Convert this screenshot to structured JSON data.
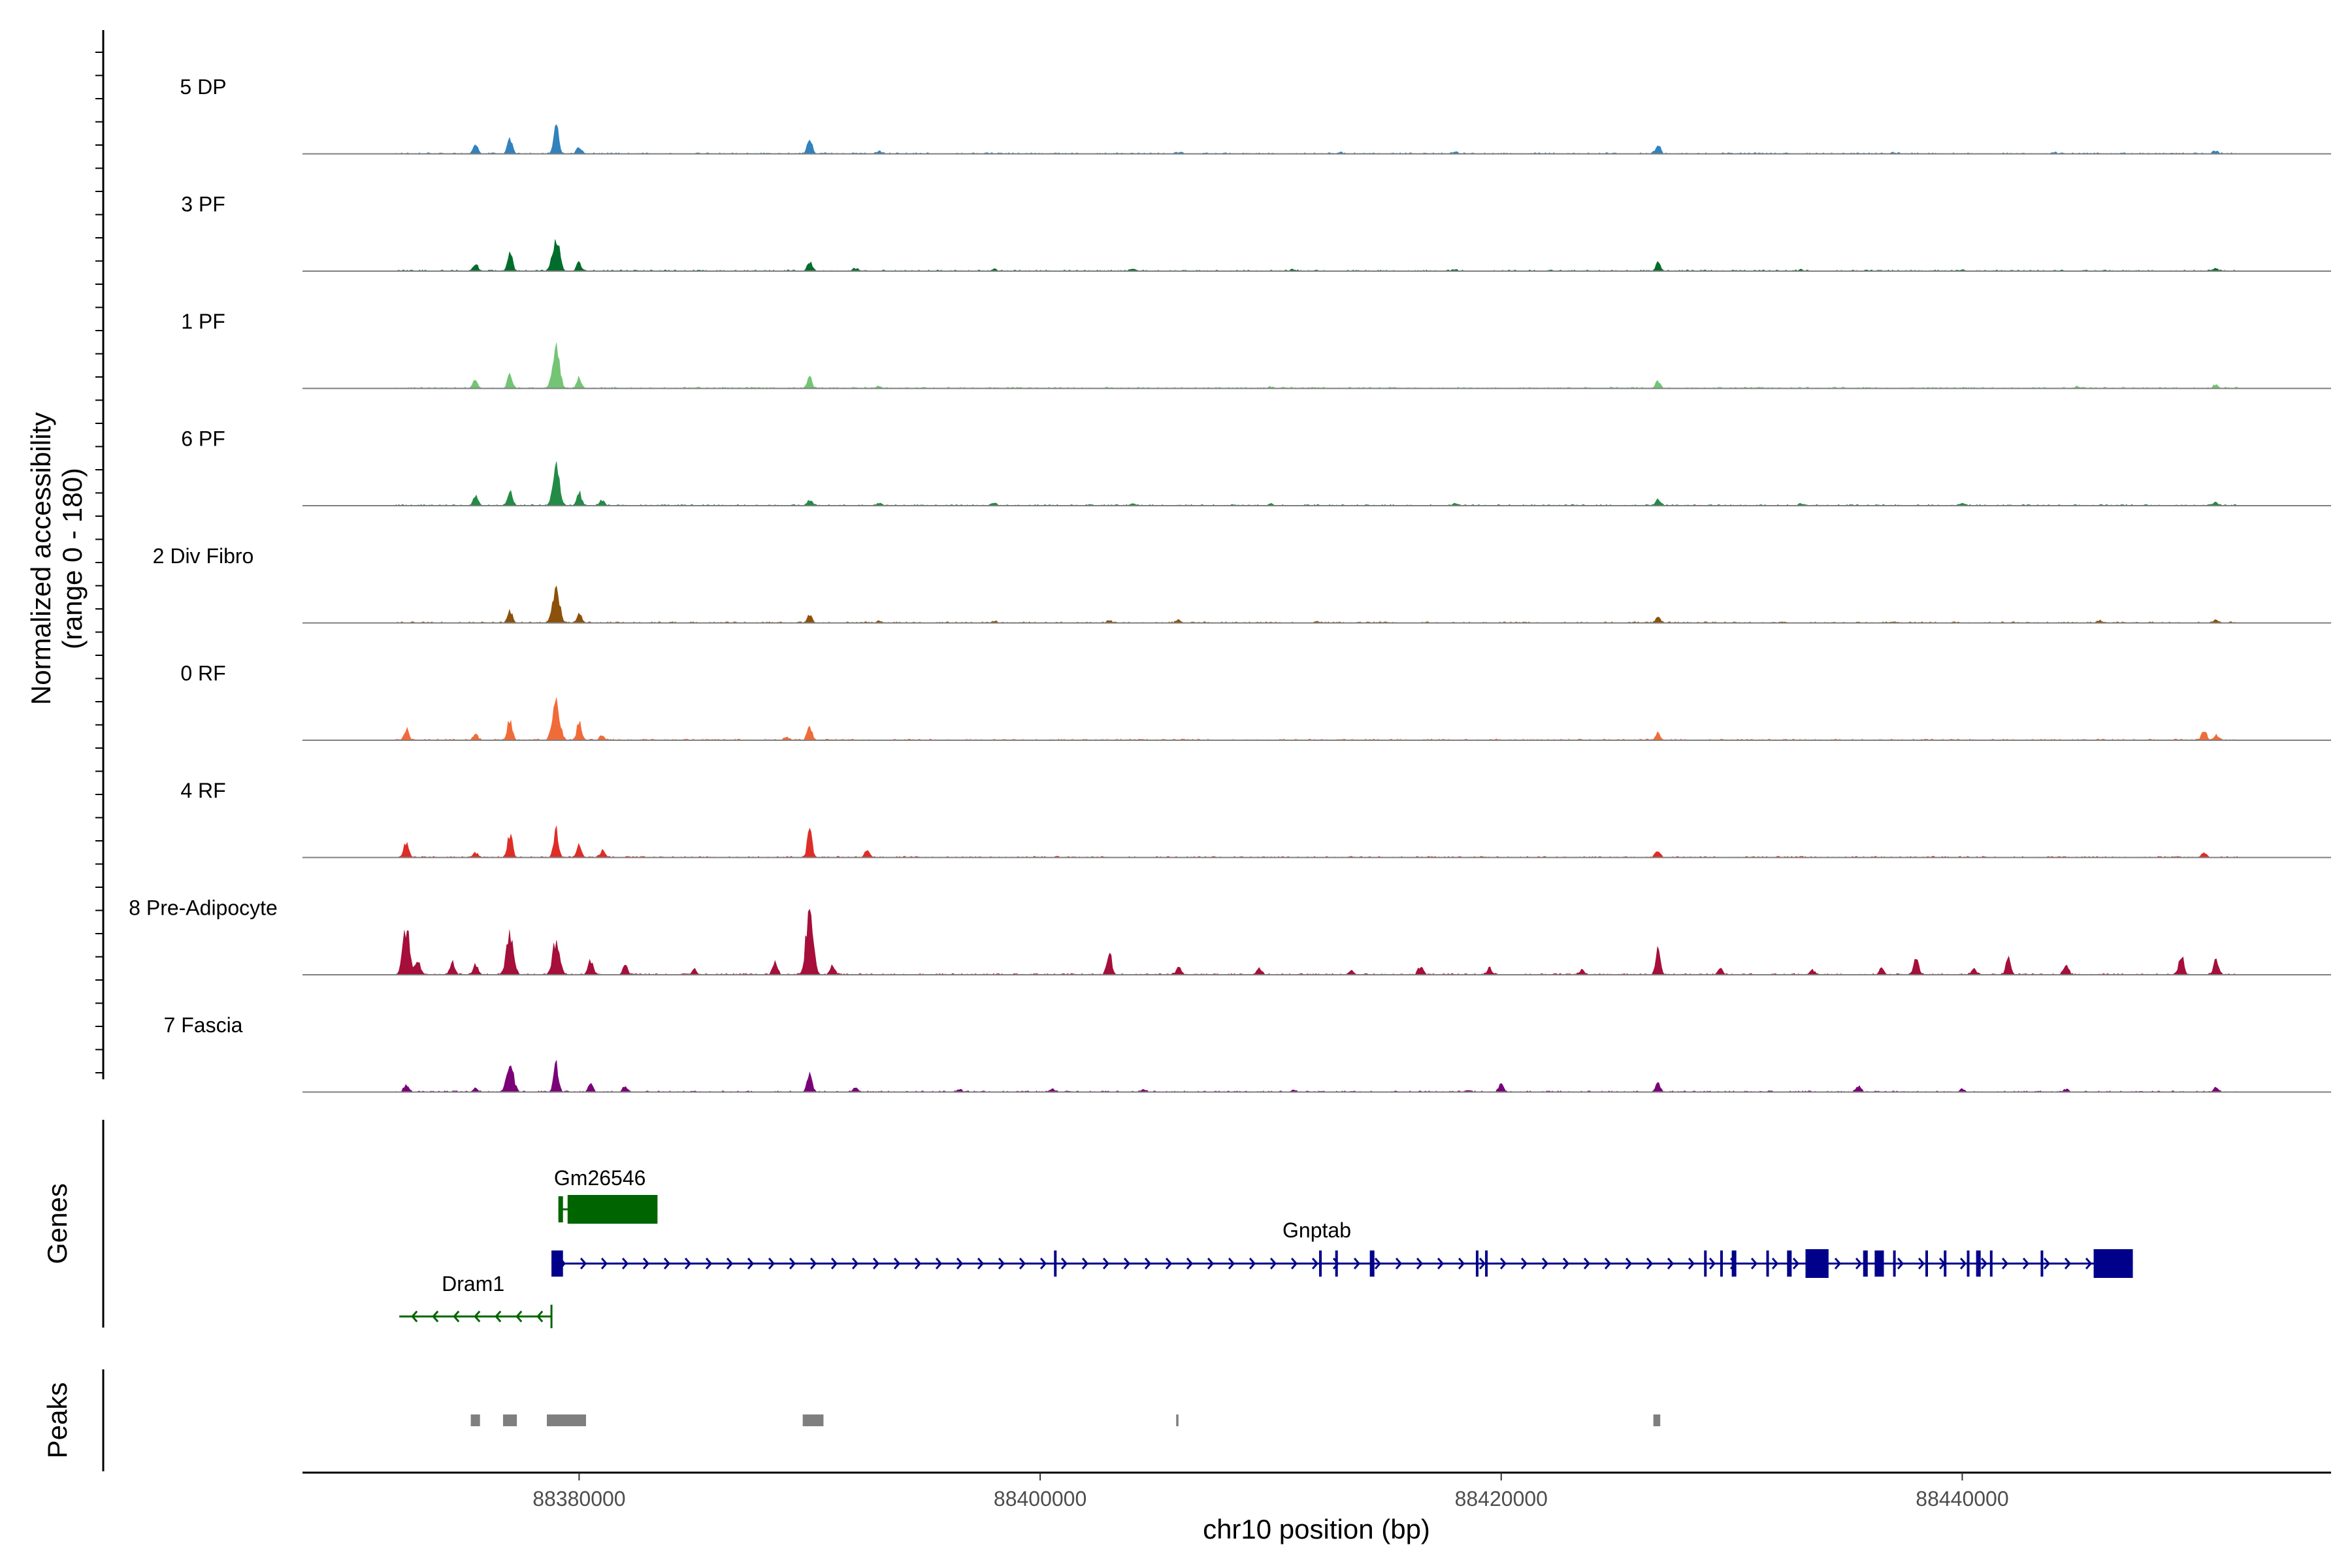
{
  "chart_data": {
    "type": "area",
    "title": "",
    "xlabel": "chr10 position (bp)",
    "ylabel_line1": "Normalized accessibility",
    "ylabel_line2": "(range 0 - 180)",
    "ylim": [
      0,
      180
    ],
    "xlim": [
      88368000,
      88456000
    ],
    "x_ticks": [
      88380000,
      88400000,
      88420000,
      88440000
    ],
    "x_tick_labels": [
      "88380000",
      "88400000",
      "88420000",
      "88440000"
    ],
    "genes_label": "Genes",
    "peaks_label": "Peaks",
    "series": [
      {
        "name": "5 DP",
        "color": "#3182bd",
        "peaks": [
          [
            88375500,
            20
          ],
          [
            88377000,
            34
          ],
          [
            88379000,
            60
          ],
          [
            88380000,
            15
          ],
          [
            88390000,
            32
          ],
          [
            88393000,
            4
          ],
          [
            88406000,
            3
          ],
          [
            88413000,
            3
          ],
          [
            88418000,
            3
          ],
          [
            88426800,
            20
          ],
          [
            88437000,
            3
          ],
          [
            88444000,
            3
          ],
          [
            88451000,
            6
          ]
        ]
      },
      {
        "name": "3 PF",
        "color": "#006d2c",
        "peaks": [
          [
            88375500,
            16
          ],
          [
            88377000,
            40
          ],
          [
            88379000,
            70
          ],
          [
            88380000,
            18
          ],
          [
            88390000,
            20
          ],
          [
            88392000,
            5
          ],
          [
            88398000,
            4
          ],
          [
            88404000,
            4
          ],
          [
            88411000,
            3
          ],
          [
            88418000,
            3
          ],
          [
            88426800,
            16
          ],
          [
            88433000,
            3
          ],
          [
            88440000,
            3
          ],
          [
            88451000,
            6
          ]
        ]
      },
      {
        "name": "1 PF",
        "color": "#74c476",
        "peaks": [
          [
            88375500,
            18
          ],
          [
            88377000,
            30
          ],
          [
            88379000,
            88
          ],
          [
            88380000,
            22
          ],
          [
            88390000,
            22
          ],
          [
            88393000,
            4
          ],
          [
            88410000,
            3
          ],
          [
            88426800,
            14
          ],
          [
            88445000,
            3
          ],
          [
            88451000,
            8
          ]
        ]
      },
      {
        "name": "6 PF",
        "color": "#238b45",
        "peaks": [
          [
            88375500,
            22
          ],
          [
            88377000,
            32
          ],
          [
            88379000,
            76
          ],
          [
            88380000,
            28
          ],
          [
            88381000,
            12
          ],
          [
            88390000,
            12
          ],
          [
            88393000,
            4
          ],
          [
            88398000,
            5
          ],
          [
            88404000,
            5
          ],
          [
            88410000,
            4
          ],
          [
            88418000,
            4
          ],
          [
            88426800,
            14
          ],
          [
            88433000,
            4
          ],
          [
            88440000,
            4
          ],
          [
            88451000,
            8
          ]
        ]
      },
      {
        "name": "2 Div Fibro",
        "color": "#8c510a",
        "peaks": [
          [
            88377000,
            26
          ],
          [
            88379000,
            78
          ],
          [
            88380000,
            20
          ],
          [
            88390000,
            16
          ],
          [
            88393000,
            4
          ],
          [
            88398000,
            4
          ],
          [
            88403000,
            5
          ],
          [
            88406000,
            6
          ],
          [
            88412000,
            3
          ],
          [
            88426800,
            12
          ],
          [
            88437000,
            3
          ],
          [
            88446000,
            4
          ],
          [
            88451000,
            6
          ]
        ]
      },
      {
        "name": "0 RF",
        "color": "#f16b39",
        "peaks": [
          [
            88372500,
            24
          ],
          [
            88375500,
            12
          ],
          [
            88377000,
            42
          ],
          [
            88379000,
            86
          ],
          [
            88380000,
            36
          ],
          [
            88381000,
            10
          ],
          [
            88389000,
            6
          ],
          [
            88390000,
            30
          ],
          [
            88426800,
            14
          ],
          [
            88450500,
            20
          ],
          [
            88451000,
            10
          ]
        ]
      },
      {
        "name": "4 RF",
        "color": "#de2d26",
        "peaks": [
          [
            88372500,
            34
          ],
          [
            88375500,
            10
          ],
          [
            88377000,
            52
          ],
          [
            88379000,
            56
          ],
          [
            88380000,
            26
          ],
          [
            88381000,
            14
          ],
          [
            88390000,
            52
          ],
          [
            88392500,
            14
          ],
          [
            88426800,
            14
          ],
          [
            88450500,
            10
          ]
        ]
      },
      {
        "name": "8 Pre-Adipocyte",
        "color": "#a50f3a",
        "peaks": [
          [
            88372500,
            96
          ],
          [
            88373000,
            30
          ],
          [
            88374500,
            26
          ],
          [
            88375500,
            20
          ],
          [
            88377000,
            84
          ],
          [
            88379000,
            72
          ],
          [
            88380500,
            30
          ],
          [
            88382000,
            20
          ],
          [
            88385000,
            10
          ],
          [
            88388500,
            26
          ],
          [
            88390000,
            148
          ],
          [
            88391000,
            20
          ],
          [
            88403000,
            50
          ],
          [
            88406000,
            16
          ],
          [
            88409500,
            14
          ],
          [
            88413500,
            10
          ],
          [
            88416500,
            18
          ],
          [
            88419500,
            14
          ],
          [
            88423500,
            10
          ],
          [
            88426800,
            50
          ],
          [
            88429500,
            14
          ],
          [
            88433500,
            10
          ],
          [
            88436500,
            14
          ],
          [
            88438000,
            38
          ],
          [
            88440500,
            12
          ],
          [
            88442000,
            36
          ],
          [
            88444500,
            24
          ],
          [
            88449500,
            42
          ],
          [
            88451000,
            30
          ]
        ]
      },
      {
        "name": "7 Fascia",
        "color": "#7a0177",
        "peaks": [
          [
            88372500,
            14
          ],
          [
            88375500,
            8
          ],
          [
            88377000,
            64
          ],
          [
            88379000,
            56
          ],
          [
            88380500,
            16
          ],
          [
            88382000,
            12
          ],
          [
            88390000,
            42
          ],
          [
            88392000,
            10
          ],
          [
            88396500,
            6
          ],
          [
            88400500,
            6
          ],
          [
            88404500,
            6
          ],
          [
            88411000,
            4
          ],
          [
            88418500,
            4
          ],
          [
            88420000,
            16
          ],
          [
            88426800,
            20
          ],
          [
            88435500,
            14
          ],
          [
            88440000,
            6
          ],
          [
            88444500,
            6
          ],
          [
            88451000,
            10
          ]
        ]
      }
    ],
    "genes": [
      {
        "name": "Gm26546",
        "strand": "-",
        "color": "#006400",
        "start": 88379100,
        "end": 88383400,
        "exons": [
          [
            88379100,
            88379300
          ],
          [
            88379500,
            88383400
          ]
        ]
      },
      {
        "name": "Gnptab",
        "strand": "+",
        "color": "#00008b",
        "start": 88378800,
        "end": 88447400,
        "exons": [
          [
            88378800,
            88379300
          ],
          [
            88400600,
            88400700
          ],
          [
            88412100,
            88412200
          ],
          [
            88412800,
            88412900
          ],
          [
            88414300,
            88414500
          ],
          [
            88418900,
            88419000
          ],
          [
            88419300,
            88419400
          ],
          [
            88428800,
            88428900
          ],
          [
            88429500,
            88429600
          ],
          [
            88430000,
            88430200
          ],
          [
            88431500,
            88431600
          ],
          [
            88432400,
            88432600
          ],
          [
            88433200,
            88434200
          ],
          [
            88435700,
            88435900
          ],
          [
            88436200,
            88436600
          ],
          [
            88437000,
            88437100
          ],
          [
            88438400,
            88438500
          ],
          [
            88439200,
            88439300
          ],
          [
            88440200,
            88440300
          ],
          [
            88440600,
            88440800
          ],
          [
            88441200,
            88441300
          ],
          [
            88443400,
            88443500
          ],
          [
            88445700,
            88447400
          ]
        ]
      },
      {
        "name": "Dram1",
        "strand": "-",
        "color": "#006400",
        "start": 88372200,
        "end": 88378800,
        "exons": []
      }
    ],
    "peaks_regions": [
      [
        88375300,
        88375700
      ],
      [
        88376700,
        88377300
      ],
      [
        88378600,
        88380300
      ],
      [
        88389700,
        88390600
      ],
      [
        88405900,
        88406000
      ],
      [
        88426600,
        88426900
      ]
    ]
  }
}
